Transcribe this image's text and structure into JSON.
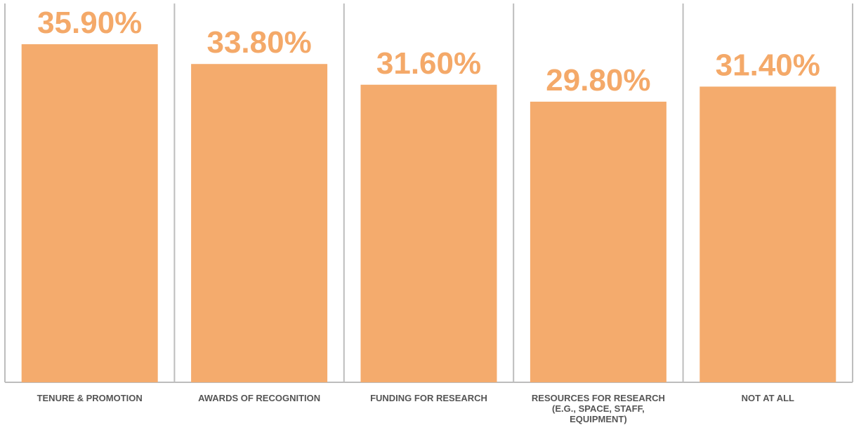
{
  "chart_data": {
    "type": "bar",
    "categories": [
      "TENURE & PROMOTION",
      "AWARDS OF RECOGNITION",
      "FUNDING FOR RESEARCH",
      "RESOURCES FOR RESEARCH (E.G., SPACE, STAFF, EQUIPMENT)",
      "NOT AT ALL"
    ],
    "values": [
      35.9,
      33.8,
      31.6,
      29.8,
      31.4
    ],
    "value_labels": [
      "35.90%",
      "33.80%",
      "31.60%",
      "29.80%",
      "31.40%"
    ],
    "color": "#f4ab6d",
    "ylim": [
      0,
      40
    ]
  }
}
